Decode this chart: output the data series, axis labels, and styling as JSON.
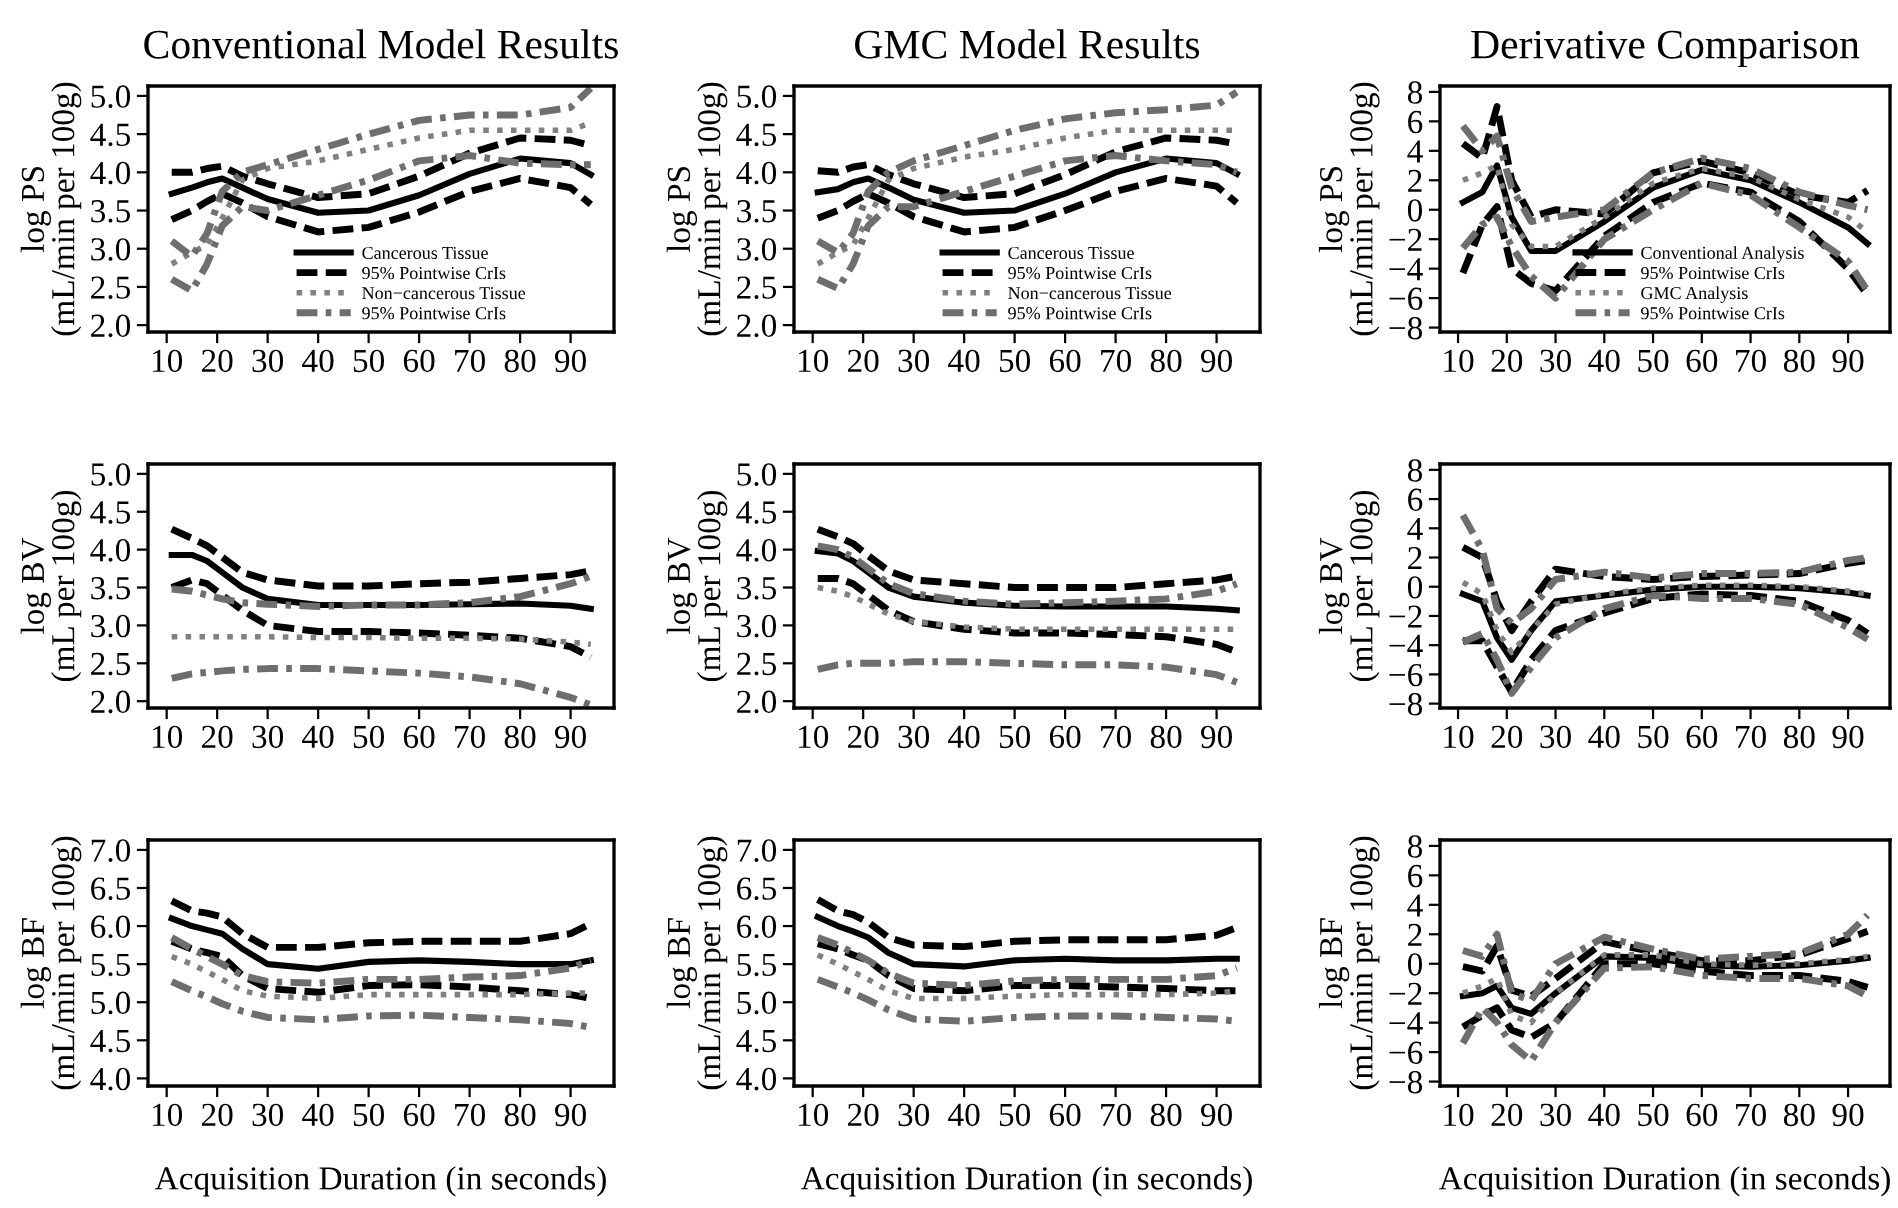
{
  "chart_data": [
    {
      "type": "line",
      "title": "Conventional Model Results",
      "ylabel": "log PS\n(mL/min per 100g)",
      "x": [
        11,
        15,
        18,
        21,
        25,
        30,
        40,
        50,
        60,
        70,
        80,
        90,
        94
      ],
      "xlim": [
        6.3,
        98.6
      ],
      "ylim": [
        1.91,
        5.13
      ],
      "xticks": [
        10,
        20,
        30,
        40,
        50,
        60,
        70,
        80,
        90
      ],
      "yticks": [
        {
          "value": 2,
          "label": "2.0"
        },
        2.5,
        {
          "value": 3,
          "label": "3.0"
        },
        3.5,
        {
          "value": 4,
          "label": "4.0"
        },
        4.5,
        {
          "value": 5,
          "label": "5.0"
        }
      ],
      "legend": "bottom right",
      "series": [
        {
          "name": "Cancerous Tissue",
          "color": "#000000",
          "line_style": "solid",
          "values": [
            3.72,
            3.8,
            3.87,
            3.92,
            3.8,
            3.65,
            3.47,
            3.5,
            3.7,
            3.98,
            4.18,
            4.12,
            3.97
          ]
        },
        {
          "name": "95% Pointwise CrIs",
          "color": "#000000",
          "line_style": "dashed",
          "values": [
            4.0,
            4.0,
            4.05,
            4.08,
            3.95,
            3.85,
            3.67,
            3.72,
            3.95,
            4.25,
            4.45,
            4.42,
            4.35
          ]
        },
        {
          "color": "#000000",
          "line_style": "dashed",
          "values": [
            3.38,
            3.5,
            3.62,
            3.72,
            3.6,
            3.42,
            3.22,
            3.28,
            3.48,
            3.75,
            3.92,
            3.8,
            3.58
          ]
        },
        {
          "name": "Non−cancerous Tissue",
          "color": "#808080",
          "line_style": "dotted",
          "values": [
            2.8,
            2.95,
            3.05,
            3.4,
            3.9,
            4.05,
            4.15,
            4.3,
            4.45,
            4.55,
            4.55,
            4.55,
            4.65
          ]
        },
        {
          "name": "95% Pointwise CrIs",
          "color": "#6e6e6e",
          "line_style": "dashdot",
          "values": [
            3.1,
            2.9,
            3.2,
            3.75,
            4.0,
            4.1,
            4.3,
            4.5,
            4.68,
            4.75,
            4.75,
            4.85,
            5.1
          ]
        },
        {
          "color": "#6e6e6e",
          "line_style": "dashdot",
          "values": [
            2.6,
            2.45,
            2.8,
            3.3,
            3.55,
            3.5,
            3.7,
            3.9,
            4.15,
            4.22,
            4.12,
            4.1,
            4.1
          ]
        }
      ]
    },
    {
      "type": "line",
      "title": "GMC Model Results",
      "ylabel": "log PS\n(mL/min per 100g)",
      "x": [
        11,
        15,
        18,
        21,
        25,
        30,
        40,
        50,
        60,
        70,
        80,
        90,
        94
      ],
      "xlim": [
        6.3,
        98.6
      ],
      "ylim": [
        1.91,
        5.13
      ],
      "xticks": [
        10,
        20,
        30,
        40,
        50,
        60,
        70,
        80,
        90
      ],
      "yticks": [
        {
          "value": 2,
          "label": "2.0"
        },
        2.5,
        {
          "value": 3,
          "label": "3.0"
        },
        3.5,
        {
          "value": 4,
          "label": "4.0"
        },
        4.5,
        {
          "value": 5,
          "label": "5.0"
        }
      ],
      "legend": "bottom right",
      "series": [
        {
          "name": "Cancerous Tissue",
          "color": "#000000",
          "line_style": "solid",
          "values": [
            3.74,
            3.78,
            3.87,
            3.92,
            3.8,
            3.64,
            3.47,
            3.5,
            3.72,
            4.0,
            4.18,
            4.12,
            3.98
          ]
        },
        {
          "name": "95% Pointwise CrIs",
          "color": "#000000",
          "line_style": "dashed",
          "values": [
            4.02,
            4.0,
            4.07,
            4.1,
            3.97,
            3.85,
            3.67,
            3.72,
            3.97,
            4.27,
            4.45,
            4.42,
            4.37
          ]
        },
        {
          "color": "#000000",
          "line_style": "dashed",
          "values": [
            3.4,
            3.5,
            3.62,
            3.72,
            3.6,
            3.42,
            3.22,
            3.28,
            3.5,
            3.75,
            3.92,
            3.82,
            3.6
          ]
        },
        {
          "name": "Non−cancerous Tissue",
          "color": "#808080",
          "line_style": "dotted",
          "values": [
            2.8,
            2.95,
            3.05,
            3.4,
            3.9,
            4.05,
            4.2,
            4.3,
            4.45,
            4.55,
            4.55,
            4.55,
            4.55
          ]
        },
        {
          "name": "95% Pointwise CrIs",
          "color": "#6e6e6e",
          "line_style": "dashdot",
          "values": [
            3.1,
            2.95,
            3.2,
            3.75,
            4.0,
            4.15,
            4.35,
            4.55,
            4.7,
            4.78,
            4.82,
            4.88,
            5.05
          ]
        },
        {
          "color": "#6e6e6e",
          "line_style": "dashdot",
          "values": [
            2.6,
            2.48,
            2.8,
            3.3,
            3.55,
            3.55,
            3.75,
            3.95,
            4.15,
            4.22,
            4.15,
            4.1,
            4.0
          ]
        }
      ]
    },
    {
      "type": "line",
      "title": "Derivative Comparison",
      "ylabel": "log PS\n(mL/min per 100g)",
      "x": [
        11,
        15,
        18,
        21,
        25,
        30,
        40,
        50,
        60,
        70,
        80,
        90,
        94
      ],
      "xlim": [
        6.3,
        98.6
      ],
      "ylim": [
        -8.3,
        8.4
      ],
      "xticks": [
        10,
        20,
        30,
        40,
        50,
        60,
        70,
        80,
        90
      ],
      "yticks": [
        {
          "value": -8,
          "label": "−8"
        },
        {
          "value": -6,
          "label": "−6"
        },
        {
          "value": -4,
          "label": "−4"
        },
        {
          "value": -2,
          "label": "−2"
        },
        0,
        2,
        4,
        6,
        8
      ],
      "legend": "bottom right",
      "series": [
        {
          "name": "Conventional Analysis",
          "color": "#000000",
          "line_style": "solid",
          "values": [
            0.5,
            1.2,
            3.0,
            -0.5,
            -2.8,
            -2.8,
            -0.8,
            1.5,
            2.7,
            2.0,
            0.5,
            -1.2,
            -2.3
          ]
        },
        {
          "name": "95% Pointwise CrIs",
          "color": "#000000",
          "line_style": "dashed",
          "values": [
            4.5,
            3.5,
            7.0,
            2.0,
            -0.5,
            0.0,
            -0.3,
            2.5,
            3.3,
            2.5,
            1.0,
            0.5,
            1.3
          ]
        },
        {
          "color": "#000000",
          "line_style": "dashed",
          "values": [
            -4.3,
            -1.0,
            0.2,
            -4.0,
            -5.0,
            -5.5,
            -1.8,
            0.5,
            1.8,
            1.2,
            -0.8,
            -4.0,
            -5.8
          ]
        },
        {
          "name": "GMC Analysis",
          "color": "#808080",
          "line_style": "dotted",
          "values": [
            2.0,
            2.5,
            3.0,
            -1.0,
            -2.5,
            -2.5,
            -0.5,
            1.8,
            2.8,
            2.2,
            0.7,
            -0.5,
            -1.5
          ]
        },
        {
          "name": "95% Pointwise CrIs",
          "color": "#6e6e6e",
          "line_style": "dashdot",
          "values": [
            5.7,
            4.0,
            5.0,
            1.5,
            -0.8,
            -0.5,
            0.0,
            2.5,
            3.5,
            2.8,
            1.2,
            0.3,
            0.0
          ]
        },
        {
          "color": "#6e6e6e",
          "line_style": "dashdot",
          "values": [
            -2.6,
            -1.0,
            -0.5,
            -2.5,
            -4.5,
            -6.0,
            -2.0,
            0.0,
            1.8,
            1.0,
            -1.2,
            -3.5,
            -5.5
          ]
        }
      ]
    },
    {
      "type": "line",
      "ylabel": "log BV\n(mL per 100g)",
      "x": [
        11,
        15,
        18,
        21,
        25,
        30,
        40,
        50,
        60,
        70,
        80,
        90,
        94
      ],
      "xlim": [
        6.3,
        98.6
      ],
      "ylim": [
        1.91,
        5.13
      ],
      "xticks": [
        10,
        20,
        30,
        40,
        50,
        60,
        70,
        80,
        90
      ],
      "yticks": [
        {
          "value": 2,
          "label": "2.0"
        },
        2.5,
        {
          "value": 3,
          "label": "3.0"
        },
        3.5,
        {
          "value": 4,
          "label": "4.0"
        },
        4.5,
        {
          "value": 5,
          "label": "5.0"
        }
      ],
      "series": [
        {
          "color": "#000000",
          "line_style": "solid",
          "values": [
            3.93,
            3.93,
            3.85,
            3.7,
            3.5,
            3.35,
            3.27,
            3.27,
            3.27,
            3.28,
            3.29,
            3.26,
            3.22
          ]
        },
        {
          "color": "#000000",
          "line_style": "dashed",
          "values": [
            4.27,
            4.15,
            4.05,
            3.9,
            3.7,
            3.6,
            3.52,
            3.52,
            3.55,
            3.57,
            3.62,
            3.67,
            3.72
          ]
        },
        {
          "color": "#000000",
          "line_style": "dashed",
          "values": [
            3.5,
            3.6,
            3.55,
            3.4,
            3.2,
            3.0,
            2.92,
            2.92,
            2.9,
            2.87,
            2.83,
            2.72,
            2.58
          ]
        },
        {
          "color": "#808080",
          "line_style": "dotted",
          "values": [
            2.85,
            2.85,
            2.85,
            2.85,
            2.85,
            2.85,
            2.84,
            2.84,
            2.83,
            2.83,
            2.82,
            2.78,
            2.75
          ]
        },
        {
          "color": "#6e6e6e",
          "line_style": "dashdot",
          "values": [
            3.48,
            3.45,
            3.4,
            3.35,
            3.3,
            3.28,
            3.25,
            3.27,
            3.27,
            3.3,
            3.38,
            3.55,
            3.65
          ]
        },
        {
          "color": "#6e6e6e",
          "line_style": "dashdot",
          "values": [
            2.3,
            2.36,
            2.38,
            2.4,
            2.42,
            2.43,
            2.43,
            2.4,
            2.37,
            2.32,
            2.23,
            2.05,
            1.95
          ]
        }
      ]
    },
    {
      "type": "line",
      "ylabel": "log BV\n(mL per 100g)",
      "x": [
        11,
        15,
        18,
        21,
        25,
        30,
        40,
        50,
        60,
        70,
        80,
        90,
        94
      ],
      "xlim": [
        6.3,
        98.6
      ],
      "ylim": [
        1.91,
        5.13
      ],
      "xticks": [
        10,
        20,
        30,
        40,
        50,
        60,
        70,
        80,
        90
      ],
      "yticks": [
        {
          "value": 2,
          "label": "2.0"
        },
        2.5,
        {
          "value": 3,
          "label": "3.0"
        },
        3.5,
        {
          "value": 4,
          "label": "4.0"
        },
        4.5,
        {
          "value": 5,
          "label": "5.0"
        }
      ],
      "series": [
        {
          "color": "#000000",
          "line_style": "solid",
          "values": [
            3.98,
            3.95,
            3.85,
            3.7,
            3.5,
            3.38,
            3.3,
            3.26,
            3.25,
            3.25,
            3.25,
            3.22,
            3.2
          ]
        },
        {
          "color": "#000000",
          "line_style": "dashed",
          "values": [
            4.27,
            4.17,
            4.08,
            3.92,
            3.72,
            3.6,
            3.55,
            3.5,
            3.5,
            3.5,
            3.55,
            3.6,
            3.65
          ]
        },
        {
          "color": "#000000",
          "line_style": "dashed",
          "values": [
            3.62,
            3.62,
            3.55,
            3.4,
            3.2,
            3.05,
            2.95,
            2.9,
            2.9,
            2.88,
            2.85,
            2.75,
            2.65
          ]
        },
        {
          "color": "#808080",
          "line_style": "dotted",
          "values": [
            3.5,
            3.45,
            3.38,
            3.28,
            3.15,
            3.05,
            2.98,
            2.95,
            2.95,
            2.95,
            2.95,
            2.95,
            2.95
          ]
        },
        {
          "color": "#6e6e6e",
          "line_style": "dashdot",
          "values": [
            4.05,
            4.0,
            3.9,
            3.75,
            3.55,
            3.42,
            3.32,
            3.28,
            3.3,
            3.32,
            3.35,
            3.45,
            3.55
          ]
        },
        {
          "color": "#6e6e6e",
          "line_style": "dashdot",
          "values": [
            2.42,
            2.48,
            2.5,
            2.5,
            2.5,
            2.52,
            2.52,
            2.5,
            2.48,
            2.48,
            2.45,
            2.35,
            2.25
          ]
        }
      ]
    },
    {
      "type": "line",
      "ylabel": "log BV\n(mL per 100g)",
      "x": [
        11,
        15,
        18,
        21,
        25,
        30,
        40,
        50,
        60,
        70,
        80,
        90,
        94
      ],
      "xlim": [
        6.3,
        98.6
      ],
      "ylim": [
        -8.3,
        8.4
      ],
      "xticks": [
        10,
        20,
        30,
        40,
        50,
        60,
        70,
        80,
        90
      ],
      "yticks": [
        {
          "value": -8,
          "label": "−8"
        },
        {
          "value": -6,
          "label": "−6"
        },
        {
          "value": -4,
          "label": "−4"
        },
        {
          "value": -2,
          "label": "−2"
        },
        0,
        2,
        4,
        6,
        8
      ],
      "series": [
        {
          "color": "#000000",
          "line_style": "solid",
          "values": [
            -0.5,
            -1.0,
            -3.5,
            -5.0,
            -3.0,
            -1.0,
            -0.6,
            -0.2,
            0.0,
            0.0,
            -0.1,
            -0.4,
            -0.6
          ]
        },
        {
          "color": "#000000",
          "line_style": "dashed",
          "values": [
            2.7,
            2.0,
            -1.0,
            -3.0,
            -1.0,
            1.2,
            0.7,
            0.5,
            0.7,
            0.8,
            0.9,
            1.6,
            1.8
          ]
        },
        {
          "color": "#000000",
          "line_style": "dashed",
          "values": [
            -3.7,
            -3.7,
            -5.5,
            -7.2,
            -5.0,
            -3.0,
            -1.8,
            -0.8,
            -0.5,
            -0.6,
            -1.0,
            -2.3,
            -3.2
          ]
        },
        {
          "color": "#808080",
          "line_style": "dotted",
          "values": [
            0.3,
            -0.5,
            -3.0,
            -4.5,
            -3.0,
            -1.2,
            -0.5,
            -0.1,
            0.1,
            0.1,
            0.0,
            -0.3,
            -0.5
          ]
        },
        {
          "color": "#6e6e6e",
          "line_style": "dashdot",
          "values": [
            4.9,
            2.5,
            -1.5,
            -2.5,
            -1.5,
            0.5,
            1.0,
            0.6,
            0.9,
            0.9,
            1.0,
            1.8,
            2.0
          ]
        },
        {
          "color": "#6e6e6e",
          "line_style": "dashdot",
          "values": [
            -3.8,
            -3.2,
            -5.0,
            -7.3,
            -5.5,
            -3.5,
            -1.5,
            -0.6,
            -0.8,
            -0.8,
            -1.2,
            -2.8,
            -3.6
          ]
        }
      ]
    },
    {
      "type": "line",
      "xlabel": "Acquisition Duration (in seconds)",
      "ylabel": "log BF\n(mL/min per 100g)",
      "x": [
        11,
        15,
        18,
        21,
        25,
        30,
        40,
        50,
        60,
        70,
        80,
        90,
        94
      ],
      "xlim": [
        6.3,
        98.6
      ],
      "ylim": [
        3.9,
        7.13
      ],
      "xticks": [
        10,
        20,
        30,
        40,
        50,
        60,
        70,
        80,
        90
      ],
      "yticks": [
        {
          "value": 4,
          "label": "4.0"
        },
        4.5,
        {
          "value": 5,
          "label": "5.0"
        },
        5.5,
        {
          "value": 6,
          "label": "6.0"
        },
        6.5,
        {
          "value": 7,
          "label": "7.0"
        }
      ],
      "series": [
        {
          "color": "#000000",
          "line_style": "solid",
          "values": [
            6.1,
            6.0,
            5.95,
            5.9,
            5.7,
            5.5,
            5.44,
            5.53,
            5.55,
            5.53,
            5.5,
            5.5,
            5.55
          ]
        },
        {
          "color": "#000000",
          "line_style": "dashed",
          "values": [
            6.33,
            6.2,
            6.17,
            6.12,
            5.9,
            5.72,
            5.72,
            5.78,
            5.8,
            5.8,
            5.8,
            5.9,
            6.03
          ]
        },
        {
          "color": "#000000",
          "line_style": "dashed",
          "values": [
            5.8,
            5.7,
            5.65,
            5.6,
            5.35,
            5.18,
            5.13,
            5.22,
            5.23,
            5.2,
            5.15,
            5.1,
            5.05
          ]
        },
        {
          "color": "#808080",
          "line_style": "dotted",
          "values": [
            5.6,
            5.5,
            5.4,
            5.3,
            5.15,
            5.08,
            5.05,
            5.1,
            5.1,
            5.1,
            5.1,
            5.12,
            5.12
          ]
        },
        {
          "color": "#6e6e6e",
          "line_style": "dashdot",
          "values": [
            5.85,
            5.7,
            5.6,
            5.5,
            5.35,
            5.27,
            5.25,
            5.3,
            5.3,
            5.33,
            5.35,
            5.45,
            5.55
          ]
        },
        {
          "color": "#6e6e6e",
          "line_style": "dashdot",
          "values": [
            5.27,
            5.15,
            5.07,
            4.98,
            4.88,
            4.8,
            4.77,
            4.82,
            4.83,
            4.8,
            4.77,
            4.72,
            4.67
          ]
        }
      ]
    },
    {
      "type": "line",
      "xlabel": "Acquisition Duration (in seconds)",
      "ylabel": "log BF\n(mL/min per 100g)",
      "x": [
        11,
        15,
        18,
        21,
        25,
        30,
        40,
        50,
        60,
        70,
        80,
        90,
        94
      ],
      "xlim": [
        6.3,
        98.6
      ],
      "ylim": [
        3.9,
        7.13
      ],
      "xticks": [
        10,
        20,
        30,
        40,
        50,
        60,
        70,
        80,
        90
      ],
      "yticks": [
        {
          "value": 4,
          "label": "4.0"
        },
        4.5,
        {
          "value": 5,
          "label": "5.0"
        },
        5.5,
        {
          "value": 6,
          "label": "6.0"
        },
        6.5,
        {
          "value": 7,
          "label": "7.0"
        }
      ],
      "series": [
        {
          "color": "#000000",
          "line_style": "solid",
          "values": [
            6.12,
            6.0,
            5.93,
            5.85,
            5.65,
            5.5,
            5.47,
            5.55,
            5.57,
            5.55,
            5.55,
            5.57,
            5.57
          ]
        },
        {
          "color": "#000000",
          "line_style": "dashed",
          "values": [
            6.35,
            6.2,
            6.15,
            6.05,
            5.85,
            5.75,
            5.73,
            5.8,
            5.82,
            5.82,
            5.82,
            5.88,
            5.98
          ]
        },
        {
          "color": "#000000",
          "line_style": "dashed",
          "values": [
            5.77,
            5.7,
            5.62,
            5.55,
            5.35,
            5.18,
            5.15,
            5.22,
            5.22,
            5.2,
            5.18,
            5.15,
            5.15
          ]
        },
        {
          "color": "#808080",
          "line_style": "dotted",
          "values": [
            5.62,
            5.5,
            5.4,
            5.3,
            5.15,
            5.05,
            5.05,
            5.08,
            5.1,
            5.1,
            5.1,
            5.12,
            5.15
          ]
        },
        {
          "color": "#6e6e6e",
          "line_style": "dashdot",
          "values": [
            5.85,
            5.75,
            5.65,
            5.55,
            5.38,
            5.25,
            5.22,
            5.28,
            5.3,
            5.3,
            5.3,
            5.35,
            5.45
          ]
        },
        {
          "color": "#6e6e6e",
          "line_style": "dashdot",
          "values": [
            5.3,
            5.2,
            5.12,
            5.03,
            4.9,
            4.78,
            4.75,
            4.8,
            4.82,
            4.82,
            4.8,
            4.78,
            4.75
          ]
        }
      ]
    },
    {
      "type": "line",
      "xlabel": "Acquisition Duration (in seconds)",
      "ylabel": "log BF\n(mL/min per 100g)",
      "x": [
        11,
        15,
        18,
        21,
        25,
        30,
        40,
        50,
        60,
        70,
        80,
        90,
        94
      ],
      "xlim": [
        6.3,
        98.6
      ],
      "ylim": [
        -8.3,
        8.4
      ],
      "xticks": [
        10,
        20,
        30,
        40,
        50,
        60,
        70,
        80,
        90
      ],
      "yticks": [
        {
          "value": -8,
          "label": "−8"
        },
        {
          "value": -6,
          "label": "−6"
        },
        {
          "value": -4,
          "label": "−4"
        },
        {
          "value": -2,
          "label": "−2"
        },
        0,
        2,
        4,
        6,
        8
      ],
      "series": [
        {
          "color": "#000000",
          "line_style": "solid",
          "values": [
            -2.2,
            -2.0,
            -1.5,
            -3.0,
            -3.4,
            -2.0,
            0.5,
            0.4,
            -0.1,
            -0.2,
            -0.1,
            0.2,
            0.4
          ]
        },
        {
          "color": "#000000",
          "line_style": "dashed",
          "values": [
            -0.2,
            -0.5,
            1.2,
            -1.8,
            -2.2,
            -1.0,
            1.5,
            0.8,
            0.2,
            0.2,
            0.6,
            1.7,
            2.2
          ]
        },
        {
          "color": "#000000",
          "line_style": "dashed",
          "values": [
            -4.3,
            -3.5,
            -3.0,
            -4.5,
            -5.0,
            -4.0,
            0.0,
            0.0,
            -0.5,
            -0.8,
            -0.8,
            -1.2,
            -1.6
          ]
        },
        {
          "color": "#808080",
          "line_style": "dotted",
          "values": [
            -2.0,
            -1.5,
            -1.0,
            -3.5,
            -4.0,
            -2.0,
            0.6,
            0.6,
            0.0,
            -0.1,
            0.0,
            0.3,
            0.5
          ]
        },
        {
          "color": "#6e6e6e",
          "line_style": "dashdot",
          "values": [
            0.9,
            0.5,
            2.0,
            -2.0,
            -2.5,
            0.0,
            1.8,
            1.0,
            0.3,
            0.5,
            0.7,
            2.0,
            3.3
          ]
        },
        {
          "color": "#6e6e6e",
          "line_style": "dashdot",
          "values": [
            -5.4,
            -3.0,
            -4.0,
            -5.5,
            -6.6,
            -4.0,
            -0.3,
            -0.2,
            -0.8,
            -1.0,
            -1.0,
            -1.5,
            -2.2
          ]
        }
      ]
    }
  ]
}
